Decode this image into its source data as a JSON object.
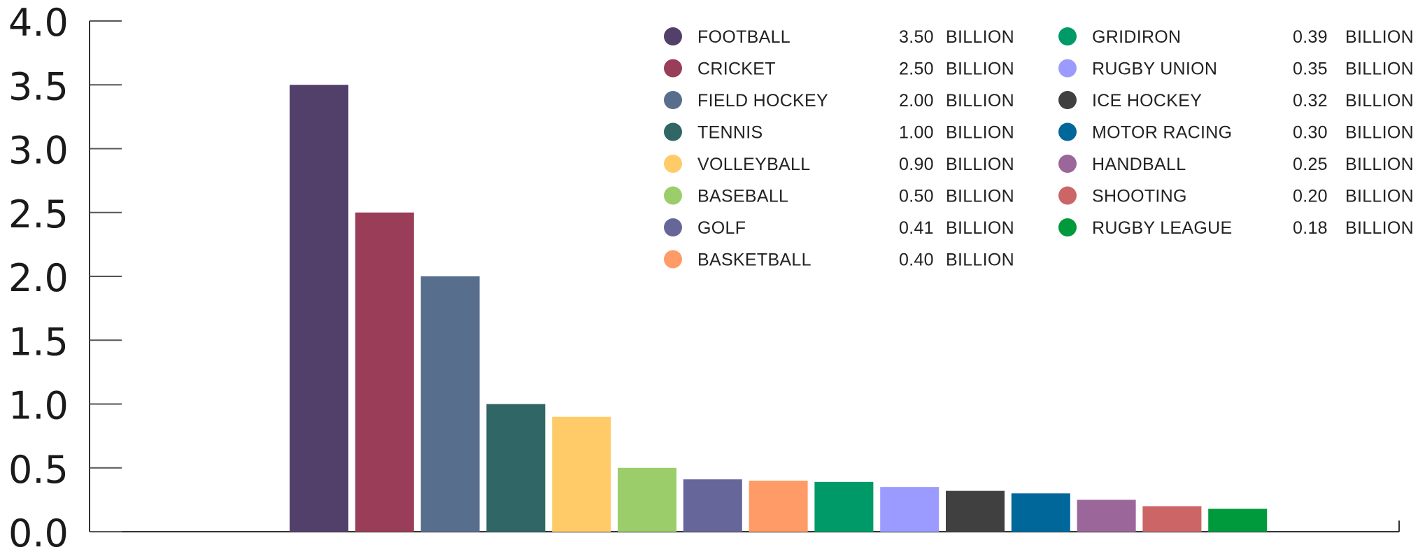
{
  "chart_data": {
    "type": "bar",
    "title": "",
    "xlabel": "",
    "ylabel": "",
    "ylim": [
      0,
      4
    ],
    "yticks": [
      "0.0",
      "0.5",
      "1.0",
      "1.5",
      "2.0",
      "2.5",
      "3.0",
      "3.5",
      "4.0"
    ],
    "grid": false,
    "legend_placement": "top-right",
    "unit": "BILLION",
    "categories": [
      "FOOTBALL",
      "CRICKET",
      "FIELD HOCKEY",
      "TENNIS",
      "VOLLEYBALL",
      "BASEBALL",
      "GOLF",
      "BASKETBALL",
      "GRIDIRON",
      "RUGBY UNION",
      "ICE HOCKEY",
      "MOTOR RACING",
      "HANDBALL",
      "SHOOTING",
      "RUGBY LEAGUE"
    ],
    "values": [
      3.5,
      2.5,
      2.0,
      1.0,
      0.9,
      0.5,
      0.41,
      0.4,
      0.39,
      0.35,
      0.32,
      0.3,
      0.25,
      0.2,
      0.18
    ],
    "value_labels": [
      "3.50",
      "2.50",
      "2.00",
      "1.00",
      "0.90",
      "0.50",
      "0.41",
      "0.40",
      "0.39",
      "0.35",
      "0.32",
      "0.30",
      "0.25",
      "0.20",
      "0.18"
    ],
    "colors": [
      "#523f6a",
      "#9a3d58",
      "#586e8d",
      "#306666",
      "#ffcb69",
      "#9bcd6a",
      "#67669a",
      "#ff9b66",
      "#009a68",
      "#9b9bff",
      "#404040",
      "#00679b",
      "#9b6699",
      "#cc6666",
      "#009a3c"
    ]
  }
}
